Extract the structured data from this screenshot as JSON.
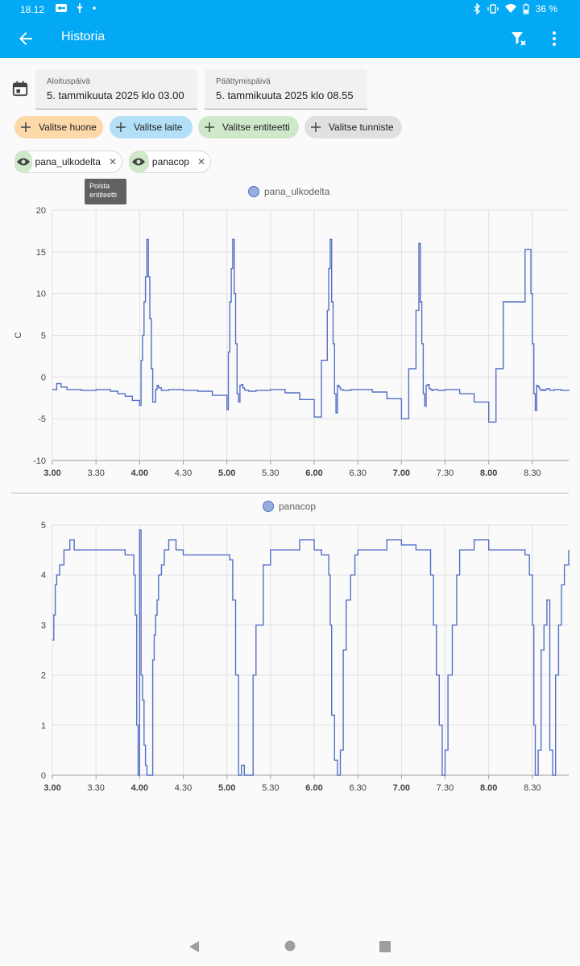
{
  "status_bar": {
    "time": "18.12",
    "battery": "36 %",
    "icons": [
      "vpn-icon",
      "usb-icon",
      "dot-icon",
      "bluetooth-icon",
      "vibrate-icon",
      "wifi-icon",
      "battery-icon"
    ]
  },
  "app_bar": {
    "title": "Historia",
    "back_icon": "arrow-left-icon",
    "filter_icon": "filter-remove-icon",
    "more_icon": "more-vertical-icon"
  },
  "date_range": {
    "calendar_icon": "calendar-icon",
    "start": {
      "label": "Aloituspäivä",
      "value": "5. tammikuuta 2025 klo 03.00"
    },
    "end": {
      "label": "Päättymispäivä",
      "value": "5. tammikuuta 2025 klo 08.55"
    }
  },
  "target_pickers": [
    {
      "label": "Valitse huone",
      "color": "#fdd8a9"
    },
    {
      "label": "Valitse laite",
      "color": "#b3e0f7"
    },
    {
      "label": "Valitse entiteetti",
      "color": "#cfe8c9"
    },
    {
      "label": "Valitse tunniste",
      "color": "#e0e0e0"
    }
  ],
  "entities": [
    {
      "name": "pana_ulkodelta"
    },
    {
      "name": "panacop"
    }
  ],
  "tooltip": "Poista entiteetti",
  "colors": {
    "accent": "#03a9f4",
    "series": "#5470c6"
  },
  "chart_data": [
    {
      "type": "line",
      "legend": [
        "pana_ulkodelta"
      ],
      "ylabel": "C",
      "ylim": [
        -10,
        20
      ],
      "yticks": [
        20,
        15,
        10,
        5,
        0,
        -5,
        -10
      ],
      "xlim": [
        "03.00",
        "08.55"
      ],
      "xticks": [
        "3.00",
        "3.30",
        "4.00",
        "4.30",
        "5.00",
        "5.30",
        "6.00",
        "6.30",
        "7.00",
        "7.30",
        "8.00",
        "8.30"
      ],
      "grid": true,
      "series": [
        {
          "name": "pana_ulkodelta",
          "x": [
            "03.00",
            "03.03",
            "03.06",
            "03.10",
            "03.20",
            "03.30",
            "03.40",
            "03.45",
            "03.50",
            "03.55",
            "04.00",
            "04.01",
            "04.02",
            "04.03",
            "04.04",
            "04.05",
            "04.06",
            "04.07",
            "04.08",
            "04.09",
            "04.10",
            "04.11",
            "04.12",
            "04.13",
            "04.15",
            "04.20",
            "04.30",
            "04.40",
            "04.50",
            "05.00",
            "05.01",
            "05.02",
            "05.03",
            "05.04",
            "05.05",
            "05.06",
            "05.07",
            "05.08",
            "05.09",
            "05.10",
            "05.11",
            "05.12",
            "05.13",
            "05.15",
            "05.20",
            "05.30",
            "05.40",
            "05.50",
            "06.00",
            "06.05",
            "06.09",
            "06.10",
            "06.11",
            "06.12",
            "06.13",
            "06.14",
            "06.15",
            "06.16",
            "06.17",
            "06.18",
            "06.19",
            "06.20",
            "06.22",
            "06.25",
            "06.30",
            "06.40",
            "06.50",
            "07.00",
            "07.05",
            "07.10",
            "07.12",
            "07.13",
            "07.14",
            "07.15",
            "07.16",
            "07.17",
            "07.18",
            "07.19",
            "07.20",
            "07.21",
            "07.22",
            "07.23",
            "07.25",
            "07.30",
            "07.40",
            "07.50",
            "08.00",
            "08.05",
            "08.10",
            "08.25",
            "08.29",
            "08.30",
            "08.31",
            "08.32",
            "08.33",
            "08.34",
            "08.35",
            "08.36",
            "08.37",
            "08.38",
            "08.39",
            "08.40",
            "08.42",
            "08.45",
            "08.50",
            "08.55"
          ],
          "y": [
            -1.5,
            -0.8,
            -1.2,
            -1.5,
            -1.6,
            -1.5,
            -1.7,
            -2.0,
            -2.3,
            -2.8,
            -3.4,
            2.0,
            5.0,
            9.0,
            12.0,
            16.5,
            12.0,
            7.0,
            1.0,
            -3.0,
            -3.0,
            -1.5,
            -1.0,
            -1.3,
            -1.6,
            -1.5,
            -1.6,
            -1.7,
            -2.2,
            -3.9,
            3.0,
            9.0,
            13.0,
            16.5,
            10.0,
            4.0,
            -2.0,
            -3.0,
            -1.0,
            -0.9,
            -1.3,
            -1.5,
            -1.6,
            -1.7,
            -1.6,
            -1.5,
            -1.9,
            -2.7,
            -4.8,
            2.0,
            8.0,
            13.0,
            16.5,
            9.0,
            4.0,
            -2.0,
            -4.3,
            -1.0,
            -1.2,
            -1.5,
            -1.5,
            -1.6,
            -1.6,
            -1.5,
            -1.5,
            -1.8,
            -2.6,
            -5.0,
            1.0,
            8.0,
            16.0,
            9.0,
            4.0,
            -2.0,
            -3.5,
            -1.0,
            -0.9,
            -1.4,
            -1.5,
            -1.6,
            -1.5,
            -1.5,
            -1.6,
            -1.5,
            -2.0,
            -3.0,
            -5.4,
            1.0,
            9.0,
            15.3,
            10.0,
            4.0,
            -2.0,
            -4.0,
            -1.0,
            -1.2,
            -1.5,
            -1.6,
            -1.5,
            -1.6,
            -1.5,
            -1.4,
            -1.6,
            -1.5,
            -1.6,
            -1.5
          ]
        }
      ]
    },
    {
      "type": "line",
      "legend": [
        "panacop"
      ],
      "ylim": [
        0,
        5
      ],
      "yticks": [
        5,
        4,
        3,
        2,
        1,
        0
      ],
      "xlim": [
        "03.00",
        "08.55"
      ],
      "xticks": [
        "3.00",
        "3.30",
        "4.00",
        "4.30",
        "5.00",
        "5.30",
        "6.00",
        "6.30",
        "7.00",
        "7.30",
        "8.00",
        "8.30"
      ],
      "grid": true,
      "series": [
        {
          "name": "panacop",
          "x": [
            "03.00",
            "03.01",
            "03.02",
            "03.03",
            "03.05",
            "03.08",
            "03.10",
            "03.12",
            "03.15",
            "03.20",
            "03.30",
            "03.40",
            "03.50",
            "03.55",
            "03.56",
            "03.57",
            "03.58",
            "03.59",
            "04.00",
            "04.01",
            "04.02",
            "04.03",
            "04.04",
            "04.05",
            "04.06",
            "04.07",
            "04.08",
            "04.09",
            "04.10",
            "04.11",
            "04.12",
            "04.13",
            "04.15",
            "04.17",
            "04.20",
            "04.25",
            "04.30",
            "04.40",
            "04.50",
            "05.00",
            "05.02",
            "05.04",
            "05.06",
            "05.08",
            "05.10",
            "05.12",
            "05.15",
            "05.18",
            "05.20",
            "05.25",
            "05.30",
            "05.40",
            "05.50",
            "06.00",
            "06.05",
            "06.10",
            "06.11",
            "06.12",
            "06.14",
            "06.16",
            "06.18",
            "06.20",
            "06.22",
            "06.25",
            "06.28",
            "06.30",
            "06.40",
            "06.50",
            "07.00",
            "07.10",
            "07.20",
            "07.22",
            "07.24",
            "07.26",
            "07.28",
            "07.30",
            "07.32",
            "07.35",
            "07.38",
            "07.40",
            "07.45",
            "07.50",
            "08.00",
            "08.10",
            "08.20",
            "08.25",
            "08.28",
            "08.30",
            "08.31",
            "08.32",
            "08.34",
            "08.36",
            "08.38",
            "08.40",
            "08.42",
            "08.44",
            "08.46",
            "08.48",
            "08.50",
            "08.52",
            "08.55"
          ],
          "y": [
            2.7,
            3.2,
            3.8,
            4.0,
            4.2,
            4.5,
            4.5,
            4.7,
            4.5,
            4.5,
            4.5,
            4.5,
            4.4,
            4.4,
            4.0,
            3.2,
            1.0,
            0.0,
            4.9,
            2.0,
            1.5,
            0.6,
            0.2,
            0.0,
            0.0,
            0.0,
            0.0,
            2.3,
            2.8,
            3.2,
            3.5,
            4.0,
            4.2,
            4.5,
            4.7,
            4.5,
            4.4,
            4.4,
            4.4,
            4.4,
            4.3,
            3.5,
            2.0,
            0.0,
            0.2,
            0.0,
            0.0,
            2.0,
            3.0,
            4.2,
            4.5,
            4.5,
            4.7,
            4.5,
            4.4,
            4.0,
            3.0,
            1.2,
            0.3,
            0.0,
            0.5,
            2.5,
            3.5,
            4.0,
            4.4,
            4.5,
            4.5,
            4.7,
            4.6,
            4.5,
            4.0,
            3.0,
            2.0,
            1.0,
            0.0,
            0.5,
            2.0,
            3.0,
            4.0,
            4.5,
            4.5,
            4.7,
            4.5,
            4.5,
            4.5,
            4.4,
            4.0,
            3.0,
            1.0,
            0.0,
            0.5,
            2.5,
            3.0,
            3.5,
            0.5,
            0.0,
            2.0,
            3.0,
            3.8,
            4.2,
            4.5
          ]
        }
      ]
    }
  ]
}
